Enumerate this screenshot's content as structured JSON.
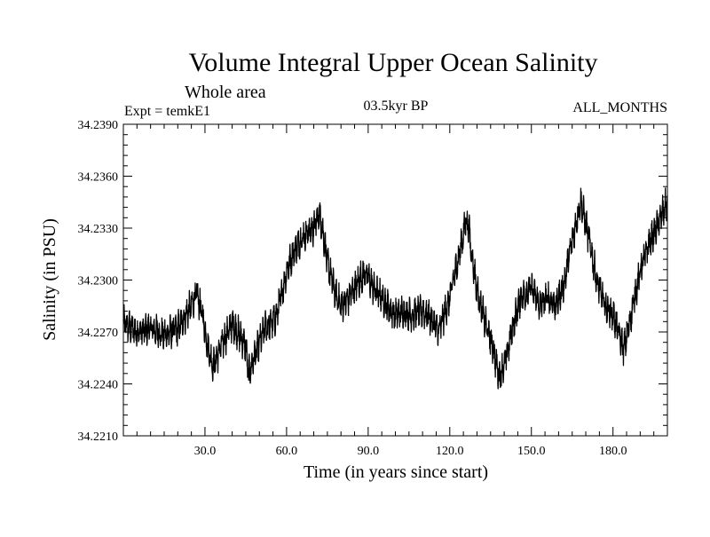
{
  "chart_data": {
    "type": "line",
    "title": "Volume Integral Upper Ocean Salinity",
    "subtitle_left": "Whole area",
    "experiment_label": "Expt = temkE1",
    "period_label": "03.5kyr BP",
    "months_label": "ALL_MONTHS",
    "xlabel": "Time (in years since start)",
    "ylabel": "Salinity (in PSU)",
    "xlim": [
      0,
      200
    ],
    "ylim": [
      34.221,
      34.239
    ],
    "xticks": [
      30,
      60,
      90,
      120,
      150,
      180
    ],
    "xtick_labels": [
      "30.0",
      "60.0",
      "90.0",
      "120.0",
      "150.0",
      "180.0"
    ],
    "yticks": [
      34.221,
      34.224,
      34.227,
      34.23,
      34.233,
      34.236,
      34.239
    ],
    "ytick_labels": [
      "34.2210",
      "34.2240",
      "34.2270",
      "34.2300",
      "34.2330",
      "34.2360",
      "34.2390"
    ],
    "series": [
      {
        "name": "Salinity",
        "trend": {
          "x": [
            0,
            5,
            10,
            15,
            20,
            25,
            27,
            29,
            31,
            33,
            36,
            40,
            45,
            46,
            48,
            52,
            56,
            58,
            60,
            63,
            66,
            68,
            70,
            72,
            73,
            75,
            78,
            80,
            83,
            86,
            89,
            92,
            95,
            98,
            100,
            103,
            106,
            110,
            113,
            116,
            118,
            120,
            122,
            124,
            126,
            127,
            128,
            130,
            133,
            136,
            138,
            140,
            143,
            146,
            150,
            153,
            156,
            159,
            162,
            164,
            166,
            168,
            169,
            171,
            174,
            177,
            180,
            182,
            184,
            186,
            188,
            190,
            193,
            196,
            200
          ],
          "y": [
            34.2275,
            34.227,
            34.2272,
            34.2268,
            34.2272,
            34.2285,
            34.2292,
            34.228,
            34.2262,
            34.225,
            34.2262,
            34.2275,
            34.2262,
            34.2245,
            34.2255,
            34.2272,
            34.2278,
            34.229,
            34.2305,
            34.2318,
            34.2325,
            34.2328,
            34.233,
            34.2338,
            34.2332,
            34.231,
            34.2292,
            34.2285,
            34.229,
            34.2298,
            34.2305,
            34.2295,
            34.229,
            34.2283,
            34.228,
            34.2282,
            34.228,
            34.2282,
            34.2278,
            34.227,
            34.228,
            34.229,
            34.2305,
            34.2318,
            34.2335,
            34.233,
            34.2315,
            34.2295,
            34.2275,
            34.226,
            34.2245,
            34.225,
            34.2272,
            34.229,
            34.2295,
            34.2285,
            34.229,
            34.2285,
            34.2298,
            34.2315,
            34.233,
            34.2345,
            34.234,
            34.2325,
            34.23,
            34.2285,
            34.228,
            34.227,
            34.226,
            34.2275,
            34.229,
            34.2305,
            34.232,
            34.233,
            34.2345
          ]
        },
        "noise_amplitude": 0.0011,
        "samples_per_year": 12
      }
    ]
  }
}
